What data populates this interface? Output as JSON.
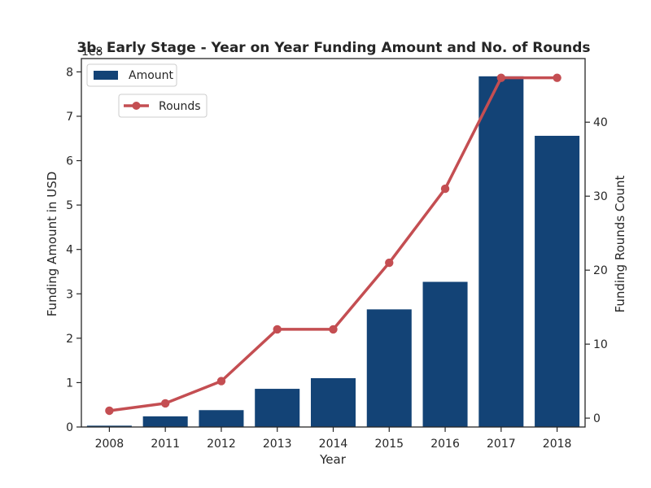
{
  "chart_data": {
    "type": "bar",
    "title": "3b. Early Stage - Year on Year Funding Amount and No. of Rounds",
    "xlabel": "Year",
    "ylabel": "Funding Amount in USD",
    "y2label": "Funding Rounds Count",
    "y_offset_label": "1e8",
    "categories": [
      "2008",
      "2011",
      "2012",
      "2013",
      "2014",
      "2015",
      "2016",
      "2017",
      "2018"
    ],
    "series": [
      {
        "name": "Amount",
        "type": "bar",
        "axis": "left",
        "color": "#134376",
        "values": [
          3000000,
          24000000,
          38000000,
          86000000,
          110000000,
          265000000,
          327000000,
          790000000,
          656000000
        ]
      },
      {
        "name": "Rounds",
        "type": "line",
        "axis": "right",
        "color": "#c44e52",
        "values": [
          1,
          2,
          5,
          12,
          12,
          21,
          31,
          46,
          46
        ]
      }
    ],
    "ylim": [
      0,
      830000000
    ],
    "y2lim": [
      -1.2,
      48.6
    ],
    "yticks": [
      0,
      1,
      2,
      3,
      4,
      5,
      6,
      7,
      8
    ],
    "y2ticks": [
      0,
      10,
      20,
      30,
      40
    ],
    "legend": [
      "upper-left"
    ]
  }
}
